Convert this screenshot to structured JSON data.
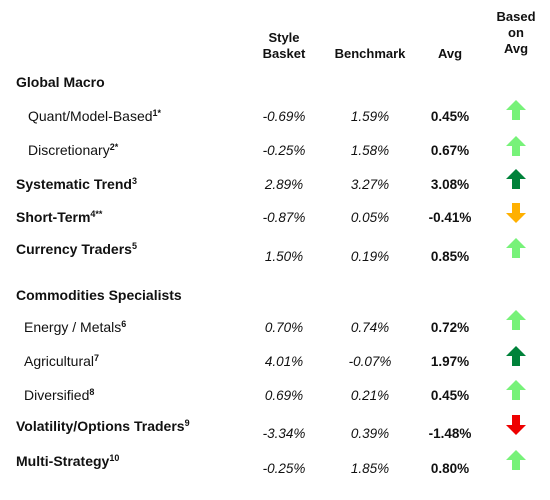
{
  "headers": {
    "style_basket": [
      "Style",
      "Basket"
    ],
    "benchmark": "Benchmark",
    "avg": "Avg",
    "based_on_avg": [
      "Based",
      "on",
      "Avg"
    ]
  },
  "rows": [
    {
      "label": "Global Macro",
      "sup": "",
      "bold": true
    },
    {
      "label": "Quant/Model-Based",
      "sup": "1*",
      "bold": false,
      "style": "-0.69%",
      "bench": "1.59%",
      "avg": "0.45%",
      "arrow": "up-light"
    },
    {
      "label": "Discretionary",
      "sup": "2*",
      "bold": false,
      "style": "-0.25%",
      "bench": "1.58%",
      "avg": "0.67%",
      "arrow": "up-light"
    },
    {
      "label": "Systematic Trend",
      "sup": "3",
      "bold": true,
      "style": "2.89%",
      "bench": "3.27%",
      "avg": "3.08%",
      "arrow": "up-dark"
    },
    {
      "label": "Short-Term",
      "sup": "4**",
      "bold": true,
      "style": "-0.87%",
      "bench": "0.05%",
      "avg": "-0.41%",
      "arrow": "down-orange"
    },
    {
      "label": "Currency Traders",
      "sup": "5",
      "bold": true,
      "style": "1.50%",
      "bench": "0.19%",
      "avg": "0.85%",
      "arrow": "up-light"
    },
    {
      "label": "Commodities Specialists",
      "sup": "",
      "bold": true
    },
    {
      "label": "Energy / Metals",
      "sup": "6",
      "bold": false,
      "style": "0.70%",
      "bench": "0.74%",
      "avg": "0.72%",
      "arrow": "up-light"
    },
    {
      "label": "Agricultural",
      "sup": "7",
      "bold": false,
      "style": "4.01%",
      "bench": "-0.07%",
      "avg": "1.97%",
      "arrow": "up-dark"
    },
    {
      "label": "Diversified",
      "sup": "8",
      "bold": false,
      "style": "0.69%",
      "bench": "0.21%",
      "avg": "0.45%",
      "arrow": "up-light"
    },
    {
      "label": "Volatility/Options Traders",
      "sup": "9",
      "bold": true,
      "style": "-3.34%",
      "bench": "0.39%",
      "avg": "-1.48%",
      "arrow": "down-red"
    },
    {
      "label": "Multi-Strategy",
      "sup": "10",
      "bold": true,
      "style": "-0.25%",
      "bench": "1.85%",
      "avg": "0.80%",
      "arrow": "up-light"
    }
  ],
  "colors": {
    "up-light": "#77f279",
    "up-dark": "#00823a",
    "down-orange": "#ffb000",
    "down-red": "#ee0000"
  },
  "icons": {
    "up-light": "arrow-up-icon",
    "up-dark": "arrow-up-icon",
    "down-orange": "arrow-down-icon",
    "down-red": "arrow-down-icon"
  }
}
